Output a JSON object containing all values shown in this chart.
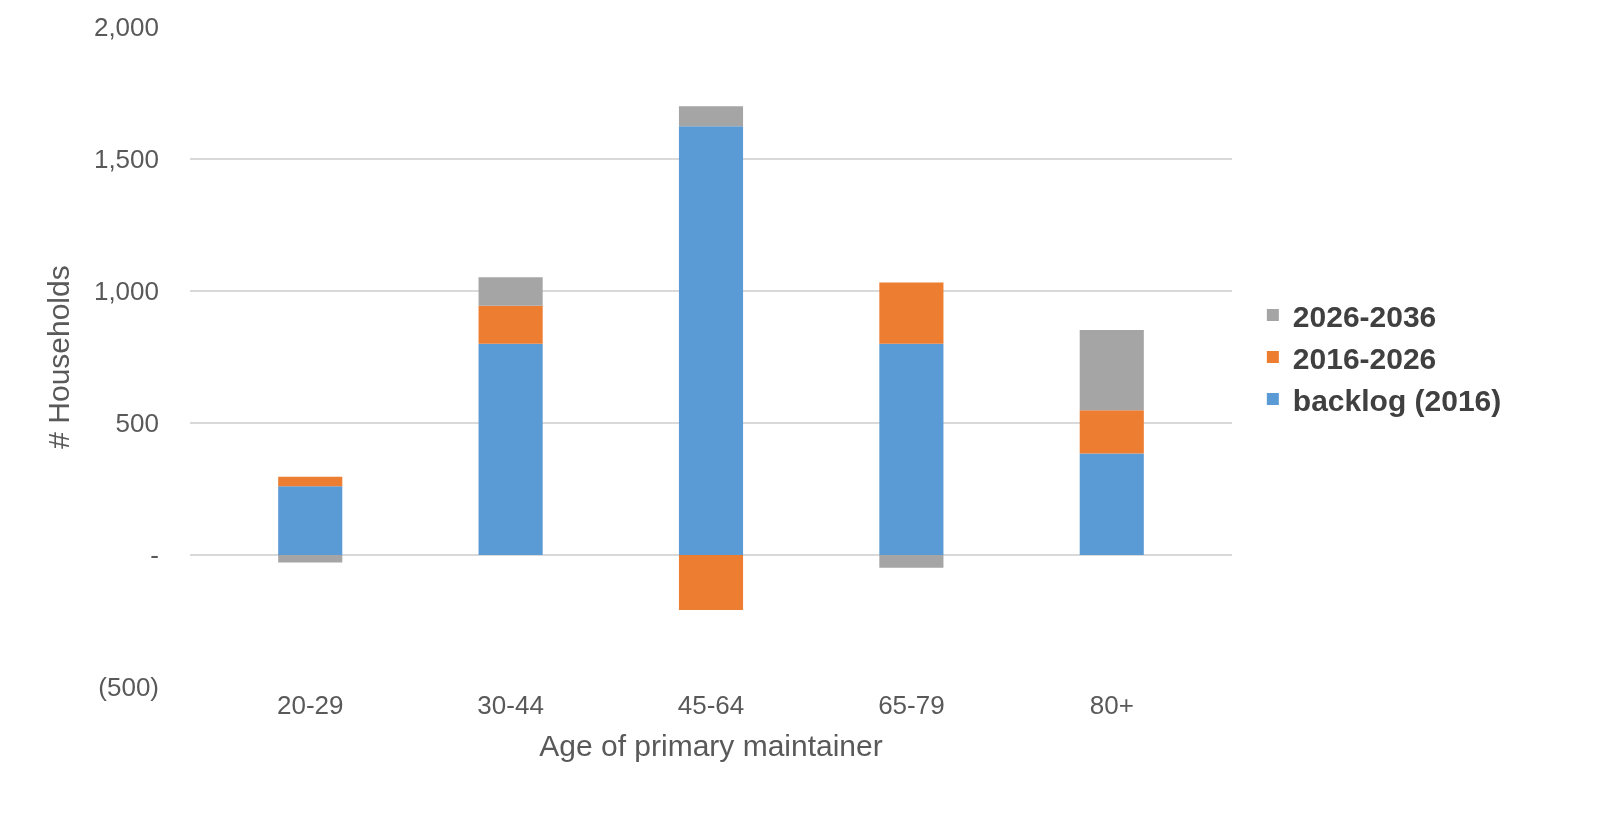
{
  "chart_data": {
    "type": "bar",
    "stacked": true,
    "xlabel": "Age of primary maintainer",
    "ylabel": "# Households",
    "categories": [
      "20-29",
      "30-44",
      "45-64",
      "65-79",
      "80+"
    ],
    "series": [
      {
        "name": "backlog (2016)",
        "color": "#5b9bd5",
        "values": [
          260,
          800,
          1624,
          800,
          384
        ]
      },
      {
        "name": "2016-2026",
        "color": "#ed7d31",
        "values": [
          36,
          144,
          -208,
          232,
          164
        ]
      },
      {
        "name": "2026-2036",
        "color": "#a5a5a5",
        "values": [
          -28,
          108,
          76,
          -48,
          304
        ]
      }
    ],
    "ylim": [
      -500,
      2000
    ],
    "yticks": [
      {
        "value": -500,
        "label": "(500)"
      },
      {
        "value": 0,
        "label": "-"
      },
      500,
      {
        "value": 1000,
        "label": "1,000"
      },
      {
        "value": 1500,
        "label": "1,500"
      },
      {
        "value": 2000,
        "label": "2,000"
      }
    ],
    "grid": "y",
    "legend": "right"
  }
}
